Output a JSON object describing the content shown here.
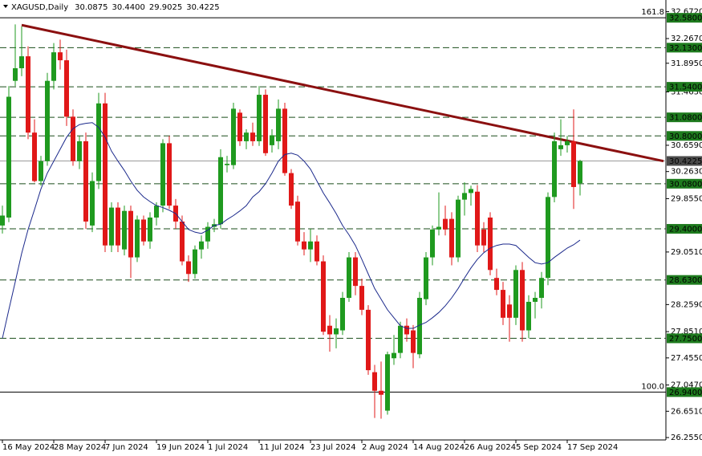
{
  "chart_data": {
    "type": "candlestick",
    "title": "XAGUSD,Daily",
    "quote": [
      "30.0875",
      "30.4400",
      "29.9025",
      "30.4225"
    ],
    "categories": [
      "16 May 2024",
      null,
      null,
      null,
      null,
      null,
      null,
      null,
      "28 May 2024",
      null,
      null,
      null,
      null,
      null,
      null,
      null,
      "7 Jun 2024",
      null,
      null,
      null,
      null,
      null,
      null,
      null,
      "19 Jun 2024",
      null,
      null,
      null,
      null,
      null,
      null,
      null,
      "1 Jul 2024",
      null,
      null,
      null,
      null,
      null,
      null,
      null,
      "11 Jul 2024",
      null,
      null,
      null,
      null,
      null,
      null,
      null,
      "23 Jul 2024",
      null,
      null,
      null,
      null,
      null,
      null,
      null,
      "2 Aug 2024",
      null,
      null,
      null,
      null,
      null,
      null,
      null,
      "14 Aug 2024",
      null,
      null,
      null,
      null,
      null,
      null,
      null,
      "26 Aug 2024",
      null,
      null,
      null,
      null,
      null,
      null,
      null,
      "5 Sep 2024",
      null,
      null,
      null,
      null,
      null,
      null,
      null,
      "17 Sep 2024",
      null,
      null
    ],
    "open": [
      29.45,
      29.57,
      31.63,
      31.82,
      32.0,
      30.85,
      30.12,
      30.42,
      31.63,
      32.06,
      31.94,
      31.09,
      30.42,
      30.72,
      29.45,
      30.12,
      31.29,
      29.15,
      29.72,
      29.09,
      29.67,
      28.97,
      29.54,
      29.21,
      29.57,
      29.75,
      30.69,
      29.75,
      29.51,
      28.91,
      28.72,
      29.09,
      29.21,
      29.43,
      29.47,
      30.36,
      30.36,
      31.15,
      30.72,
      30.85,
      30.72,
      31.42,
      30.66,
      30.72,
      31.21,
      30.24,
      29.81,
      29.21,
      29.09,
      29.21,
      28.91,
      27.94,
      27.81,
      27.87,
      28.36,
      28.97,
      28.54,
      28.18,
      27.24,
      26.96,
      26.66,
      27.45,
      27.53,
      27.94,
      27.87,
      27.51,
      28.34,
      28.97,
      29.39,
      29.55,
      29.55,
      28.97,
      29.84,
      29.94,
      29.96,
      29.39,
      29.57,
      28.66,
      28.48,
      28.26,
      28.06,
      28.78,
      27.87,
      28.3,
      28.36,
      28.66,
      29.88,
      30.6,
      30.66,
      30.72,
      30.0875
    ],
    "high": [
      29.75,
      31.55,
      32.48,
      32.45,
      32.15,
      31.05,
      30.5,
      31.75,
      32.2,
      32.25,
      32.1,
      31.2,
      30.8,
      30.85,
      30.25,
      31.45,
      31.45,
      29.8,
      29.8,
      29.75,
      29.75,
      29.6,
      29.6,
      29.65,
      29.8,
      30.75,
      30.8,
      29.85,
      29.6,
      29.0,
      29.15,
      29.3,
      29.5,
      29.55,
      30.6,
      30.5,
      31.3,
      31.2,
      30.9,
      31.0,
      31.55,
      31.5,
      30.9,
      31.35,
      31.3,
      30.3,
      29.9,
      29.35,
      29.4,
      29.3,
      29.0,
      28.1,
      28.05,
      28.45,
      29.05,
      29.05,
      28.65,
      28.25,
      27.35,
      27.4,
      27.55,
      27.8,
      28.0,
      28.05,
      27.95,
      28.45,
      29.05,
      29.45,
      29.95,
      29.75,
      29.65,
      29.9,
      30.1,
      30.05,
      30.06,
      29.5,
      29.65,
      28.8,
      28.6,
      28.4,
      28.85,
      28.9,
      28.4,
      28.45,
      28.75,
      29.95,
      30.85,
      31.05,
      30.8,
      31.2,
      30.44
    ],
    "low": [
      29.33,
      29.5,
      31.55,
      31.7,
      30.75,
      30.1,
      30.05,
      30.35,
      31.5,
      31.8,
      30.95,
      30.35,
      30.3,
      29.4,
      29.35,
      30.0,
      29.05,
      29.05,
      29.05,
      29.0,
      28.66,
      28.9,
      29.15,
      29.1,
      29.45,
      29.65,
      29.7,
      29.4,
      28.85,
      28.6,
      28.65,
      28.95,
      29.1,
      29.35,
      29.4,
      30.25,
      30.3,
      30.65,
      30.6,
      30.65,
      30.65,
      30.5,
      30.55,
      30.6,
      30.2,
      29.7,
      29.15,
      29.0,
      28.9,
      28.85,
      27.8,
      27.55,
      27.6,
      27.8,
      28.3,
      28.4,
      28.1,
      27.2,
      26.55,
      26.54,
      26.6,
      27.35,
      27.45,
      27.7,
      27.3,
      27.45,
      28.25,
      28.85,
      29.3,
      29.3,
      28.85,
      28.9,
      29.6,
      29.75,
      29.05,
      29.05,
      28.7,
      28.4,
      27.95,
      27.7,
      27.95,
      27.7,
      27.75,
      28.05,
      28.2,
      28.55,
      29.8,
      30.5,
      30.55,
      29.7,
      29.9025
    ],
    "close": [
      29.6,
      31.39,
      31.82,
      32.0,
      30.85,
      30.12,
      30.42,
      31.63,
      32.06,
      31.94,
      31.09,
      30.42,
      30.72,
      29.51,
      30.12,
      31.29,
      29.15,
      29.72,
      29.15,
      29.67,
      28.97,
      29.54,
      29.21,
      29.57,
      29.75,
      30.69,
      29.75,
      29.51,
      28.91,
      28.72,
      29.09,
      29.21,
      29.43,
      29.47,
      30.48,
      30.38,
      31.21,
      30.72,
      30.85,
      30.72,
      31.42,
      30.54,
      30.81,
      31.21,
      30.24,
      29.75,
      29.21,
      29.09,
      29.21,
      28.91,
      27.85,
      27.81,
      27.9,
      28.36,
      28.97,
      28.54,
      28.18,
      27.27,
      26.96,
      26.9,
      27.51,
      27.53,
      27.94,
      27.81,
      27.53,
      28.36,
      28.97,
      29.39,
      29.43,
      29.39,
      28.97,
      29.84,
      29.94,
      30.0,
      29.15,
      29.15,
      28.78,
      28.48,
      28.06,
      28.06,
      28.78,
      27.87,
      28.3,
      28.36,
      28.66,
      29.88,
      30.72,
      30.66,
      30.72,
      30.03,
      30.4225
    ],
    "up_color": "#1f9a1f",
    "down_color": "#e01818",
    "ma": {
      "color": "#1c2a8c",
      "values": [
        27.75,
        28.18,
        28.6,
        29.03,
        29.39,
        29.69,
        30.0,
        30.24,
        30.42,
        30.6,
        30.78,
        30.91,
        30.97,
        30.99,
        31.0,
        30.93,
        30.78,
        30.57,
        30.42,
        30.28,
        30.12,
        29.98,
        29.88,
        29.81,
        29.75,
        29.72,
        29.68,
        29.63,
        29.51,
        29.39,
        29.35,
        29.33,
        29.38,
        29.45,
        29.47,
        29.54,
        29.6,
        29.67,
        29.75,
        29.88,
        29.96,
        30.08,
        30.24,
        30.42,
        30.52,
        30.54,
        30.51,
        30.42,
        30.3,
        30.12,
        29.94,
        29.79,
        29.63,
        29.45,
        29.31,
        29.15,
        28.94,
        28.72,
        28.5,
        28.34,
        28.18,
        28.06,
        27.94,
        27.9,
        27.9,
        27.95,
        27.99,
        28.06,
        28.14,
        28.24,
        28.36,
        28.5,
        28.66,
        28.81,
        28.94,
        29.04,
        29.11,
        29.15,
        29.17,
        29.17,
        29.15,
        29.06,
        28.97,
        28.89,
        28.87,
        28.89,
        28.97,
        29.04,
        29.11,
        29.16,
        29.23
      ]
    },
    "trendline": {
      "color": "#8b1010",
      "x": [
        3,
        103
      ],
      "values": [
        32.47,
        30.42
      ]
    },
    "levels": [
      {
        "value": 32.58,
        "label": "32.5800",
        "style": "solid",
        "color": "#1e7b1e"
      },
      {
        "value": 32.13,
        "label": "32.1300",
        "style": "dashed",
        "color": "#1e7b1e"
      },
      {
        "value": 31.54,
        "label": "31.5400",
        "style": "dashed",
        "color": "#1e7b1e"
      },
      {
        "value": 31.08,
        "label": "31.0800",
        "style": "dashed",
        "color": "#1e7b1e"
      },
      {
        "value": 30.8,
        "label": "30.8000",
        "style": "dashed",
        "color": "#1e7b1e"
      },
      {
        "value": 30.4225,
        "label": "30.4225",
        "style": "current",
        "color": "#4a4a4a"
      },
      {
        "value": 30.08,
        "label": "30.0800",
        "style": "dashed",
        "color": "#1e7b1e"
      },
      {
        "value": 29.4,
        "label": "29.4000",
        "style": "dashed",
        "color": "#1e7b1e"
      },
      {
        "value": 28.63,
        "label": "28.6300",
        "style": "dashed",
        "color": "#1e7b1e"
      },
      {
        "value": 27.75,
        "label": "27.7500",
        "style": "dashed",
        "color": "#1e7b1e"
      },
      {
        "value": 26.94,
        "label": "26.9400",
        "style": "solid",
        "color": "#1e7b1e"
      }
    ],
    "fib_labels": [
      {
        "value": 32.58,
        "label": "161.8"
      },
      {
        "value": 26.94,
        "label": "100.0"
      }
    ],
    "ylim": [
      26.219,
      32.848
    ],
    "yticks": [
      {
        "value": 32.672,
        "label": "32.6720"
      },
      {
        "value": 32.267,
        "label": "32.2670"
      },
      {
        "value": 31.895,
        "label": "31.8950"
      },
      {
        "value": 31.463,
        "label": "31.4630"
      },
      {
        "value": 30.659,
        "label": "30.6590"
      },
      {
        "value": 30.263,
        "label": "30.2630"
      },
      {
        "value": 29.855,
        "label": "29.8550"
      },
      {
        "value": 29.051,
        "label": "29.0510"
      },
      {
        "value": 28.259,
        "label": "28.2590"
      },
      {
        "value": 27.851,
        "label": "27.8510"
      },
      {
        "value": 27.455,
        "label": "27.4550"
      },
      {
        "value": 27.047,
        "label": "27.0470"
      },
      {
        "value": 26.651,
        "label": "26.6510"
      },
      {
        "value": 26.255,
        "label": "26.2550"
      }
    ],
    "grid": false
  }
}
